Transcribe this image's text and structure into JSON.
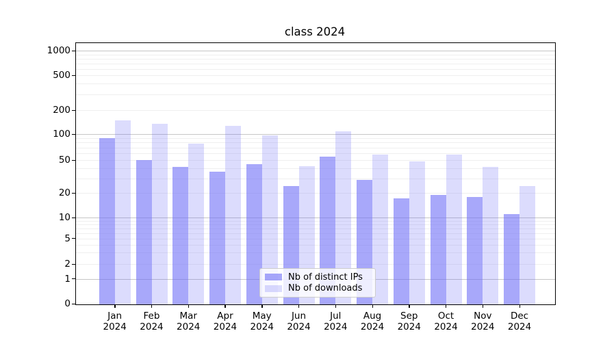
{
  "chart_data": {
    "type": "bar",
    "title": "class 2024",
    "scale": "symlog-like (log above 1, linear 0-1)",
    "grid": true,
    "legend_position": "bottom-center",
    "categories": [
      "Jan",
      "Feb",
      "Mar",
      "Apr",
      "May",
      "Jun",
      "Jul",
      "Aug",
      "Sep",
      "Oct",
      "Nov",
      "Dec"
    ],
    "category_year": "2024",
    "series": [
      {
        "name": "Nb of distinct IPs",
        "color": "rgba(110,110,247,0.6)",
        "values": [
          90,
          50,
          41,
          36,
          45,
          24,
          55,
          29,
          17,
          19,
          18,
          11
        ]
      },
      {
        "name": "Nb of downloads",
        "color": "rgba(110,110,247,0.24)",
        "values": [
          150,
          135,
          77,
          126,
          96,
          42,
          108,
          58,
          48,
          58,
          41,
          24
        ]
      }
    ],
    "y_ticks": [
      0,
      1,
      2,
      5,
      10,
      20,
      50,
      100,
      200,
      500,
      1000
    ],
    "y_major_gridlines": [
      1,
      10,
      100,
      1000
    ],
    "y_minor_gridlines": [
      2,
      3,
      4,
      5,
      6,
      7,
      8,
      9,
      20,
      30,
      40,
      50,
      60,
      70,
      80,
      90,
      200,
      300,
      400,
      500,
      600,
      700,
      800,
      900
    ],
    "ylim": [
      0,
      1250
    ]
  },
  "colors": {
    "bar_base": "#6e6ef7",
    "major_grid": "#c6c6c6",
    "minor_grid": "#efefef",
    "axis": "#000000",
    "legend_border": "#cccccc"
  }
}
